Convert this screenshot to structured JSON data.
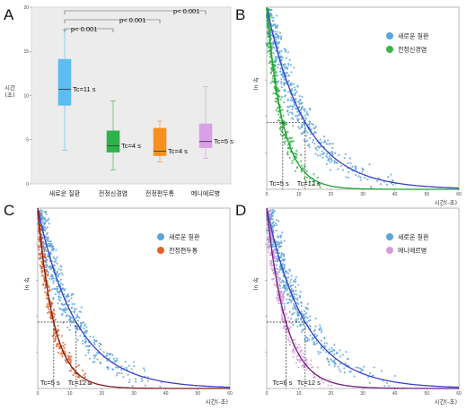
{
  "chart_data": [
    {
      "panel": "A",
      "type": "box",
      "ylabel": "시간\n(초)",
      "ylim": [
        0,
        20
      ],
      "yticks": [
        0,
        5,
        10,
        15,
        20
      ],
      "background": "#ececec",
      "categories": [
        "새로운 질환",
        "전정신경염",
        "전정편두통",
        "메니에르병"
      ],
      "colors": [
        "#5bbdf0",
        "#2db34a",
        "#f7911e",
        "#d9a0e8"
      ],
      "whisker_colors": [
        "#7cc8f0",
        "#58c06a",
        "#f2a060",
        "#d8b0e0"
      ],
      "boxes": [
        {
          "min": 3.8,
          "q1": 8.9,
          "median": 10.7,
          "q3": 14.1,
          "max": 17.4,
          "label": "Tc=11 s"
        },
        {
          "min": 1.6,
          "q1": 3.6,
          "median": 4.3,
          "q3": 6.0,
          "max": 9.4,
          "label": "Tc=4 s"
        },
        {
          "min": 2.5,
          "q1": 3.2,
          "median": 3.7,
          "q3": 6.3,
          "max": 7.1,
          "label": "Tc=4 s"
        },
        {
          "min": 2.9,
          "q1": 4.1,
          "median": 4.8,
          "q3": 6.8,
          "max": 11.0,
          "label": "Tc=5 s"
        }
      ],
      "significance": [
        {
          "from": 0,
          "to": 1,
          "label": "p< 0.001"
        },
        {
          "from": 0,
          "to": 2,
          "label": "p< 0.001"
        },
        {
          "from": 0,
          "to": 3,
          "label": "p< 0.001"
        }
      ]
    },
    {
      "panel": "B",
      "type": "scatter",
      "xlabel": "시간(-초)",
      "ylabel": "ln 속",
      "xlim": [
        0,
        60
      ],
      "ylim": [
        0,
        1
      ],
      "xticks": [
        0,
        10,
        20,
        30,
        40,
        50,
        60
      ],
      "series": [
        {
          "name": "새로운 질환",
          "color": "#5ba3dc",
          "curve_color": "#3b3fc4",
          "tau": 12,
          "n": 520,
          "seed": 11
        },
        {
          "name": "전정신경염",
          "color": "#3bb44a",
          "curve_color": "#22a236",
          "tau": 5,
          "n": 330,
          "seed": 21
        }
      ],
      "guides": [
        {
          "x": 5,
          "label": "Tc=5 s"
        },
        {
          "x": 12,
          "label": "Tc=12 s"
        }
      ],
      "guide_y": 0.368
    },
    {
      "panel": "C",
      "type": "scatter",
      "xlabel": "시간(-초)",
      "ylabel": "ln 속",
      "xlim": [
        0,
        60
      ],
      "ylim": [
        0,
        1
      ],
      "xticks": [
        0,
        10,
        20,
        30,
        40,
        50,
        60
      ],
      "series": [
        {
          "name": "새로운 질환",
          "color": "#5ba3dc",
          "curve_color": "#3b3fc4",
          "tau": 12,
          "n": 520,
          "seed": 31
        },
        {
          "name": "전정편두통",
          "color": "#e0622a",
          "curve_color": "#7a1e1e",
          "tau": 5,
          "n": 330,
          "seed": 41
        }
      ],
      "guides": [
        {
          "x": 5,
          "label": "Tc=5 s"
        },
        {
          "x": 12,
          "label": "Tc=12 s"
        }
      ],
      "guide_y": 0.368
    },
    {
      "panel": "D",
      "type": "scatter",
      "xlabel": "시간(-초)",
      "ylabel": "ln 속",
      "xlim": [
        0,
        60
      ],
      "ylim": [
        0,
        1
      ],
      "xticks": [
        0,
        10,
        20,
        30,
        40,
        50,
        60
      ],
      "series": [
        {
          "name": "새로운 질환",
          "color": "#5ba3dc",
          "curve_color": "#3b3fc4",
          "tau": 12,
          "n": 520,
          "seed": 51
        },
        {
          "name": "메니에르병",
          "color": "#d79ad9",
          "curve_color": "#6a1f7a",
          "tau": 6,
          "n": 330,
          "seed": 61
        }
      ],
      "guides": [
        {
          "x": 6,
          "label": "Tc=6 s"
        },
        {
          "x": 12,
          "label": "Tc=12 s"
        }
      ],
      "guide_y": 0.368
    }
  ]
}
